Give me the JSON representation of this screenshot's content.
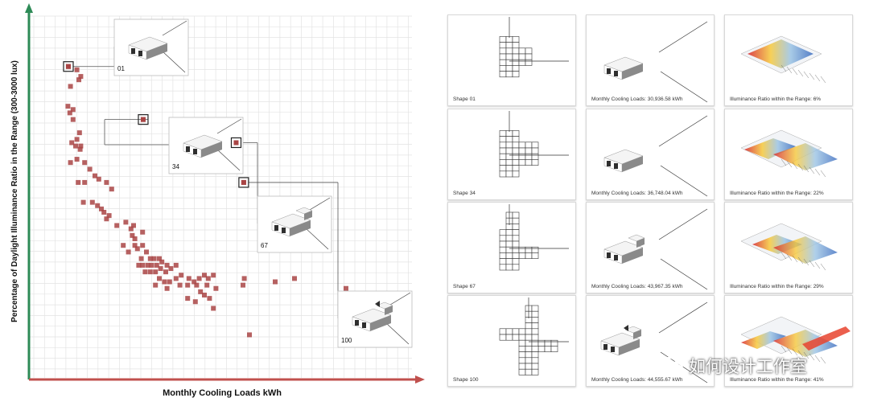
{
  "chart_data": {
    "type": "scatter",
    "xlabel": "Monthly Cooling Loads kWh",
    "ylabel": "Percentage of Daylight Illuminance Ratio in the Range (300-3000 lux)",
    "points": [
      [
        30936.58,
        6
      ],
      [
        31100,
        12
      ],
      [
        31600,
        7
      ],
      [
        31900,
        9
      ],
      [
        31750,
        10
      ],
      [
        30900,
        18
      ],
      [
        31300,
        19
      ],
      [
        31050,
        20
      ],
      [
        31300,
        22
      ],
      [
        31800,
        26
      ],
      [
        31200,
        29
      ],
      [
        31600,
        28
      ],
      [
        31500,
        30
      ],
      [
        31850,
        31
      ],
      [
        31900,
        30
      ],
      [
        31100,
        35
      ],
      [
        31600,
        34
      ],
      [
        32200,
        35
      ],
      [
        32600,
        37
      ],
      [
        31700,
        41
      ],
      [
        32200,
        41
      ],
      [
        33000,
        39
      ],
      [
        33300,
        40
      ],
      [
        33900,
        41
      ],
      [
        34300,
        43
      ],
      [
        36748.04,
        22
      ],
      [
        32100,
        47
      ],
      [
        32800,
        47
      ],
      [
        33200,
        48
      ],
      [
        33500,
        49
      ],
      [
        33700,
        50
      ],
      [
        33900,
        52
      ],
      [
        34100,
        51
      ],
      [
        34700,
        54
      ],
      [
        35400,
        53
      ],
      [
        36000,
        54
      ],
      [
        35800,
        55
      ],
      [
        36700,
        56
      ],
      [
        35900,
        57
      ],
      [
        36100,
        58
      ],
      [
        35200,
        60
      ],
      [
        35600,
        62
      ],
      [
        36100,
        60
      ],
      [
        36300,
        61
      ],
      [
        36700,
        60
      ],
      [
        37000,
        62
      ],
      [
        36600,
        64
      ],
      [
        37300,
        64
      ],
      [
        37600,
        64
      ],
      [
        38000,
        64
      ],
      [
        36400,
        66
      ],
      [
        36700,
        66
      ],
      [
        37100,
        66
      ],
      [
        37400,
        66
      ],
      [
        37800,
        66
      ],
      [
        38200,
        65
      ],
      [
        38600,
        66
      ],
      [
        38100,
        67
      ],
      [
        38500,
        68
      ],
      [
        36900,
        68
      ],
      [
        37300,
        68
      ],
      [
        37700,
        68
      ],
      [
        38900,
        67
      ],
      [
        39300,
        66
      ],
      [
        38000,
        70
      ],
      [
        38400,
        71
      ],
      [
        38800,
        71
      ],
      [
        39300,
        70
      ],
      [
        39700,
        69
      ],
      [
        40300,
        70
      ],
      [
        40700,
        71
      ],
      [
        41100,
        70
      ],
      [
        41500,
        69
      ],
      [
        41800,
        70
      ],
      [
        42200,
        69
      ],
      [
        43967.35,
        29
      ],
      [
        37700,
        72
      ],
      [
        38600,
        73
      ],
      [
        39600,
        72
      ],
      [
        40200,
        72
      ],
      [
        40900,
        72
      ],
      [
        41700,
        72
      ],
      [
        42400,
        73
      ],
      [
        41200,
        74
      ],
      [
        41500,
        75
      ],
      [
        40200,
        76
      ],
      [
        41900,
        76
      ],
      [
        42200,
        79
      ],
      [
        44500,
        72
      ],
      [
        44600,
        70
      ],
      [
        47000,
        71
      ],
      [
        48500,
        70
      ],
      [
        52500,
        73
      ],
      [
        40800,
        77
      ],
      [
        45000,
        87
      ],
      [
        44555.67,
        41
      ]
    ],
    "highlighted": [
      {
        "label": "01",
        "x": 30936.58,
        "y": 6
      },
      {
        "label": "34",
        "x": 36748.04,
        "y": 22
      },
      {
        "label": "67",
        "x": 43967.35,
        "y": 29
      },
      {
        "label": "100",
        "x": 44555.67,
        "y": 41
      }
    ],
    "grid": true
  },
  "rows": [
    {
      "shape": "Shape 01",
      "cooling": "Monthly Cooling Loads: 30,936.58 kWh",
      "ratio": "Illuminance Ratio within the Range: 6%"
    },
    {
      "shape": "Shape 34",
      "cooling": "Monthly Cooling Loads: 36,748.04 kWh",
      "ratio": "Illuminance Ratio within the Range: 22%"
    },
    {
      "shape": "Shape 67",
      "cooling": "Monthly Cooling Loads: 43,967.35 kWh",
      "ratio": "Illuminance Ratio within the Range: 29%"
    },
    {
      "shape": "Shape 100",
      "cooling": "Monthly Cooling Loads: 44,555.67 kWh",
      "ratio": "Illuminance Ratio within the Range: 41%"
    }
  ],
  "watermark": "如何设计工作室",
  "colors": {
    "point": "#a94545",
    "axis_y": "#2e8b57",
    "axis_x": "#c0504d"
  }
}
